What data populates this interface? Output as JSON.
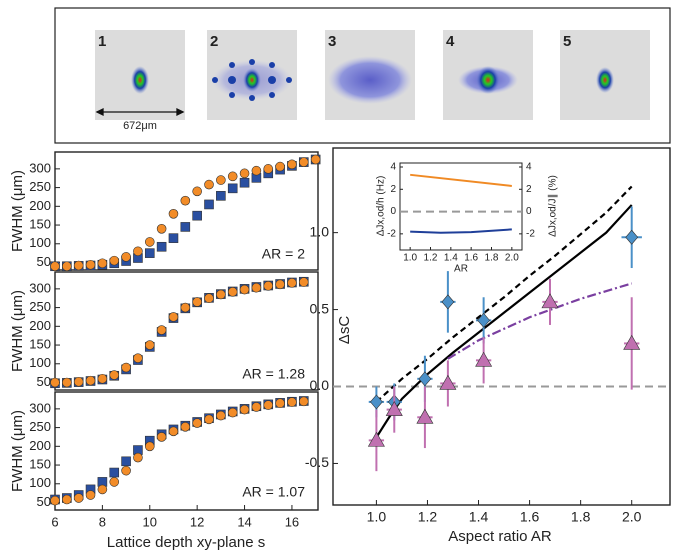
{
  "image_panel": {
    "labels": [
      "1",
      "2",
      "3",
      "4",
      "5"
    ],
    "scale_bar": "672μm"
  },
  "chart_data": [
    {
      "type": "scatter",
      "ylabel": "FWHM (μm)",
      "annotation": "AR = 2",
      "xlim": [
        6,
        17.1
      ],
      "ylim": [
        30,
        345
      ],
      "yticks": [
        50,
        100,
        150,
        200,
        250,
        300
      ],
      "x": [
        6,
        6.5,
        7,
        7.5,
        8,
        8.5,
        9,
        9.5,
        10,
        10.5,
        11,
        11.5,
        12,
        12.5,
        13,
        13.5,
        14,
        14.5,
        15,
        15.5,
        16,
        16.5,
        17
      ],
      "series": [
        {
          "color": "#2a4fa0",
          "marker": "square",
          "values": [
            40,
            40,
            41,
            42,
            44,
            48,
            54,
            62,
            75,
            92,
            115,
            145,
            175,
            205,
            228,
            248,
            263,
            276,
            288,
            298,
            308,
            318,
            325
          ]
        },
        {
          "color": "#f28c28",
          "marker": "circle",
          "values": [
            40,
            40,
            42,
            44,
            48,
            55,
            65,
            80,
            105,
            140,
            180,
            215,
            240,
            258,
            270,
            280,
            288,
            295,
            300,
            306,
            312,
            318,
            325
          ]
        }
      ]
    },
    {
      "type": "scatter",
      "ylabel": "FWHM (μm)",
      "annotation": "AR = 1.28",
      "xlim": [
        6,
        17.1
      ],
      "ylim": [
        30,
        345
      ],
      "yticks": [
        50,
        100,
        150,
        200,
        250,
        300
      ],
      "x": [
        6,
        6.5,
        7,
        7.5,
        8,
        8.5,
        9,
        9.5,
        10,
        10.5,
        11,
        11.5,
        12,
        12.5,
        13,
        13.5,
        14,
        14.5,
        15,
        15.5,
        16,
        16.5
      ],
      "series": [
        {
          "color": "#2a4fa0",
          "marker": "square",
          "values": [
            48,
            49,
            51,
            54,
            58,
            68,
            85,
            110,
            145,
            185,
            222,
            248,
            264,
            276,
            286,
            293,
            300,
            305,
            309,
            313,
            317,
            319
          ]
        },
        {
          "color": "#f28c28",
          "marker": "circle",
          "values": [
            50,
            50,
            52,
            55,
            60,
            70,
            90,
            115,
            150,
            190,
            225,
            250,
            265,
            275,
            285,
            292,
            298,
            303,
            308,
            312,
            316,
            318
          ]
        }
      ]
    },
    {
      "type": "scatter",
      "ylabel": "FWHM (μm)",
      "annotation": "AR = 1.07",
      "xlabel": "Lattice depth xy-plane s",
      "xlim": [
        6,
        17.1
      ],
      "xticks": [
        6,
        8,
        10,
        12,
        14,
        16
      ],
      "ylim": [
        30,
        345
      ],
      "yticks": [
        50,
        100,
        150,
        200,
        250,
        300
      ],
      "x": [
        6,
        6.5,
        7,
        7.5,
        8,
        8.5,
        9,
        9.5,
        10,
        10.5,
        11,
        11.5,
        12,
        12.5,
        13,
        13.5,
        14,
        14.5,
        15,
        15.5,
        16,
        16.5
      ],
      "series": [
        {
          "color": "#2a4fa0",
          "marker": "square",
          "values": [
            58,
            62,
            70,
            85,
            105,
            130,
            160,
            190,
            215,
            232,
            245,
            255,
            265,
            275,
            285,
            293,
            300,
            307,
            312,
            316,
            319,
            321
          ]
        },
        {
          "color": "#f28c28",
          "marker": "circle",
          "values": [
            55,
            58,
            62,
            70,
            85,
            105,
            135,
            170,
            200,
            225,
            240,
            252,
            262,
            272,
            282,
            290,
            298,
            305,
            310,
            315,
            318,
            320
          ]
        }
      ]
    },
    {
      "type": "line",
      "ylabel": "ΔsC",
      "xlabel": "Aspect ratio AR",
      "xlim": [
        0.83,
        2.15
      ],
      "xticks": [
        {
          "value": 1,
          "label": "1.0"
        },
        1.2,
        1.4,
        1.6,
        1.8,
        {
          "value": 2,
          "label": "2.0"
        }
      ],
      "ylim": [
        -0.77,
        1.55
      ],
      "yticks": [
        -0.5,
        {
          "value": 0,
          "label": "0.0"
        },
        0.5,
        {
          "value": 1,
          "label": "1.0"
        }
      ],
      "hline": {
        "value": 0,
        "color": "#999999"
      },
      "series": [
        {
          "color": "#000000",
          "line": "dashed",
          "x": [
            1.0,
            1.1,
            1.2,
            1.3,
            1.4,
            1.5,
            1.6,
            1.7,
            1.8,
            1.9,
            2.0
          ],
          "values": [
            -0.1,
            0.05,
            0.18,
            0.32,
            0.45,
            0.58,
            0.72,
            0.85,
            0.99,
            1.13,
            1.3
          ]
        },
        {
          "color": "#000000",
          "line": "solid",
          "x": [
            1.0,
            1.05,
            1.1,
            1.2,
            1.3,
            1.4,
            1.5,
            1.6,
            1.7,
            1.8,
            1.9,
            2.0
          ],
          "values": [
            -0.33,
            -0.2,
            -0.08,
            0.08,
            0.22,
            0.35,
            0.48,
            0.61,
            0.74,
            0.87,
            1.0,
            1.18
          ]
        },
        {
          "color": "#7a3fa0",
          "line": "dashdot",
          "x": [
            1.28,
            1.4,
            1.6,
            1.8,
            2.0
          ],
          "values": [
            0.18,
            0.3,
            0.45,
            0.57,
            0.67
          ]
        },
        {
          "color": "#4a90c8",
          "marker": "diamond",
          "x": [
            1.0,
            1.07,
            1.19,
            1.28,
            1.42,
            2.0
          ],
          "values": [
            -0.1,
            -0.1,
            0.05,
            0.55,
            0.43,
            0.97
          ],
          "errors": [
            0.1,
            0.12,
            0.15,
            0.2,
            0.15,
            0.2
          ],
          "xerrors": [
            0.03,
            0.03,
            0.03,
            0.03,
            0.03,
            0.04
          ]
        },
        {
          "color": "#c070b0",
          "marker": "triangle",
          "x": [
            1.0,
            1.07,
            1.19,
            1.28,
            1.42,
            1.68,
            2.0
          ],
          "values": [
            -0.35,
            -0.15,
            -0.2,
            0.02,
            0.17,
            0.55,
            0.28
          ],
          "errors": [
            0.2,
            0.15,
            0.2,
            0.15,
            0.15,
            0.15,
            0.3
          ],
          "xerrors": [
            0.03,
            0.03,
            0.03,
            0.03,
            0.03,
            0.03,
            0.03
          ]
        }
      ]
    },
    {
      "type": "line",
      "ylabel": "ΔJx,od/h (Hz)",
      "y2label": "ΔJx,od/J∥ (%)",
      "xlabel": "AR",
      "xlim": [
        0.9,
        2.1
      ],
      "xticks": [
        {
          "value": 1,
          "label": "1.0"
        },
        1.2,
        1.4,
        1.6,
        1.8,
        {
          "value": 2,
          "label": "2.0"
        }
      ],
      "ylim": [
        -3.45,
        4.36
      ],
      "yticks": [
        -2,
        0,
        2,
        4
      ],
      "y2lim": [
        -3.45,
        4.36
      ],
      "y2ticks": [
        -2,
        0,
        2,
        4
      ],
      "hline": {
        "value": 0,
        "color": "#999999"
      },
      "series": [
        {
          "color": "#f08a24",
          "line": "solid",
          "x": [
            1.0,
            2.0
          ],
          "values": [
            3.3,
            2.3
          ]
        },
        {
          "color": "#1f3f99",
          "line": "solid",
          "x": [
            1.0,
            1.3,
            1.6,
            2.0
          ],
          "values": [
            -1.8,
            -1.9,
            -1.85,
            -1.6
          ]
        }
      ]
    }
  ]
}
